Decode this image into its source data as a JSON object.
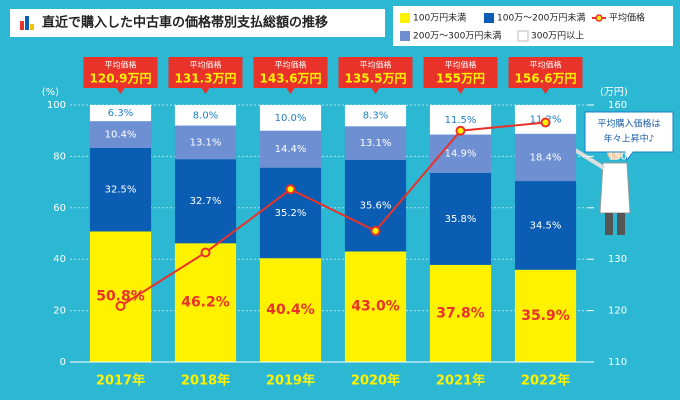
{
  "chart_data": {
    "type": "bar",
    "stacked": true,
    "title": "直近で購入した中古車の価格帯別支払総額の推移",
    "categories": [
      "2017年",
      "2018年",
      "2019年",
      "2020年",
      "2021年",
      "2022年"
    ],
    "series": [
      {
        "name": "100万円未満",
        "color": "#fff200",
        "label_color": "#e8322a",
        "values": [
          50.8,
          46.2,
          40.4,
          43.0,
          37.8,
          35.9
        ],
        "value_labels": [
          "50.8%",
          "46.2%",
          "40.4%",
          "43.0%",
          "37.8%",
          "35.9%"
        ]
      },
      {
        "name": "100万～200万円未満",
        "color": "#0b5db3",
        "label_color": "#ffffff",
        "values": [
          32.5,
          32.7,
          35.2,
          35.6,
          35.8,
          34.5
        ],
        "value_labels": [
          "32.5%",
          "32.7%",
          "35.2%",
          "35.6%",
          "35.8%",
          "34.5%"
        ]
      },
      {
        "name": "200万～300万円未満",
        "color": "#6f8fd3",
        "label_color": "#ffffff",
        "values": [
          10.4,
          13.1,
          14.4,
          13.1,
          14.9,
          18.4
        ],
        "value_labels": [
          "10.4%",
          "13.1%",
          "14.4%",
          "13.1%",
          "14.9%",
          "18.4%"
        ]
      },
      {
        "name": "300万円以上",
        "color": "#ffffff",
        "label_color": "#1b7fc4",
        "values": [
          6.3,
          8.0,
          10.0,
          8.3,
          11.5,
          11.2
        ],
        "value_labels": [
          "6.3%",
          "8.0%",
          "10.0%",
          "8.3%",
          "11.5%",
          "11.2%"
        ]
      },
      {
        "name": "平均価格",
        "type": "line",
        "axis": "y2",
        "color": "#e8322a",
        "values": [
          120.9,
          131.3,
          143.6,
          135.5,
          155,
          156.6
        ],
        "value_labels": [
          "120.9万円",
          "131.3万円",
          "143.6万円",
          "135.5万円",
          "155万円",
          "156.6万円"
        ]
      }
    ],
    "callout_label": "平均価格",
    "ylabel": "(%)",
    "y2label": "(万円)",
    "ylim": [
      0,
      100
    ],
    "yticks": [
      0,
      20,
      40,
      60,
      80,
      100
    ],
    "y2lim": [
      110,
      160
    ],
    "y2ticks": [
      110,
      120,
      130,
      140,
      150,
      160
    ],
    "grid": true,
    "annotation": [
      "平均購入価格は",
      "年々上昇中♪"
    ]
  }
}
